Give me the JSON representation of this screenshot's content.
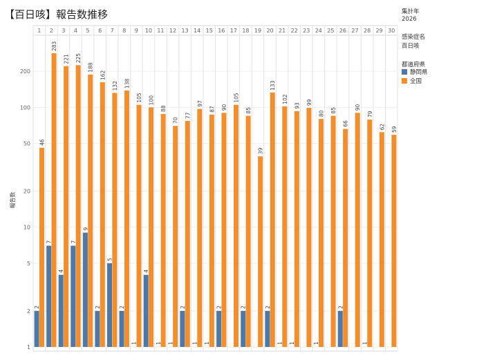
{
  "title": "【百日咳】報告数推移",
  "filters": {
    "year_label": "集計年",
    "year_value": "2026",
    "disease_label": "感染症名",
    "disease_value": "百日咳"
  },
  "legend": {
    "title": "都道府県",
    "items": [
      {
        "label": "静岡県",
        "color": "#4e79a7"
      },
      {
        "label": "全国",
        "color": "#f28e2b"
      }
    ]
  },
  "chart_data": {
    "type": "bar",
    "yscale": "log",
    "ylabel": "報告数",
    "ylim": [
      1,
      400
    ],
    "yticks": [
      1,
      2,
      5,
      10,
      20,
      50,
      100,
      200
    ],
    "categories": [
      "1",
      "2",
      "3",
      "4",
      "5",
      "6",
      "7",
      "8",
      "9",
      "10",
      "11",
      "12",
      "13",
      "14",
      "15",
      "16",
      "17",
      "18",
      "19",
      "20",
      "21",
      "22",
      "23",
      "24",
      "25",
      "26",
      "27",
      "28",
      "29",
      "30"
    ],
    "series": [
      {
        "name": "静岡県",
        "color": "#4e79a7",
        "values": [
          2,
          7,
          4,
          7,
          9,
          2,
          5,
          2,
          1,
          4,
          1,
          1,
          2,
          1,
          1,
          2,
          null,
          2,
          null,
          2,
          1,
          1,
          null,
          1,
          null,
          2,
          null,
          1,
          null,
          null
        ]
      },
      {
        "name": "全国",
        "color": "#f28e2b",
        "values": [
          46,
          283,
          221,
          225,
          188,
          162,
          132,
          138,
          105,
          100,
          88,
          70,
          77,
          97,
          87,
          90,
          105,
          85,
          39,
          133,
          102,
          93,
          99,
          80,
          85,
          66,
          90,
          79,
          62,
          59
        ]
      }
    ]
  }
}
